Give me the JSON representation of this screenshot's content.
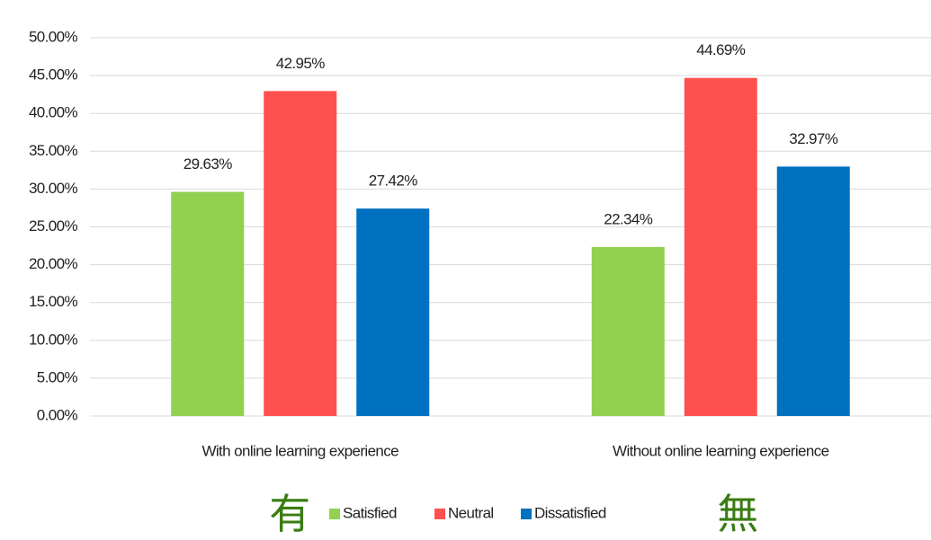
{
  "chart_data": {
    "type": "bar",
    "categories": [
      "With online learning experience",
      "Without online learning experience"
    ],
    "series": [
      {
        "name": "Satisfied",
        "color": "#92d050",
        "values": [
          29.63,
          22.34
        ],
        "value_labels": [
          "29.63%",
          "22.34%"
        ]
      },
      {
        "name": "Neutral",
        "color": "#ff5050",
        "values": [
          42.95,
          44.69
        ],
        "value_labels": [
          "42.95%",
          "44.69%"
        ]
      },
      {
        "name": "Dissatisfied",
        "color": "#0070c0",
        "values": [
          27.42,
          32.97
        ],
        "value_labels": [
          "27.42%",
          "32.97%"
        ]
      }
    ],
    "ylim": [
      0,
      50
    ],
    "yticks": [
      {
        "value": 0,
        "label": "0.00%"
      },
      {
        "value": 5,
        "label": "5.00%"
      },
      {
        "value": 10,
        "label": "10.00%"
      },
      {
        "value": 15,
        "label": "15.00%"
      },
      {
        "value": 20,
        "label": "20.00%"
      },
      {
        "value": 25,
        "label": "25.00%"
      },
      {
        "value": 30,
        "label": "30.00%"
      },
      {
        "value": 35,
        "label": "35.00%"
      },
      {
        "value": 40,
        "label": "40.00%"
      },
      {
        "value": 45,
        "label": "45.00%"
      },
      {
        "value": 50,
        "label": "50.00%"
      }
    ],
    "grid": true,
    "legend": "bottom",
    "annotations": [
      "有",
      "無"
    ],
    "annotation_color": "#3a7d12"
  }
}
